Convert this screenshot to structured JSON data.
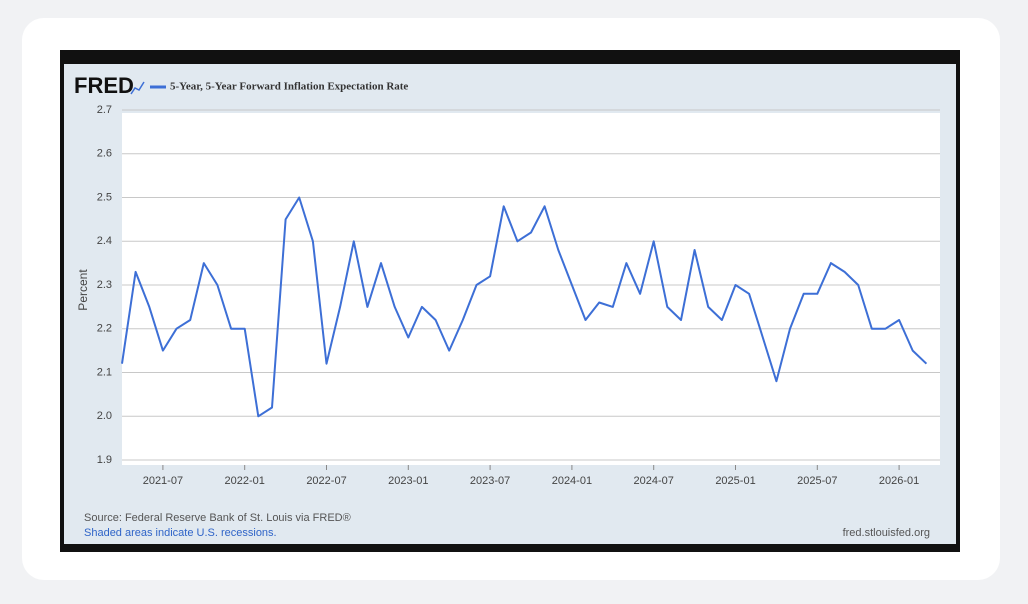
{
  "chart_data": {
    "type": "line",
    "logo": "FRED",
    "y_label": "Percent",
    "source": "Source: Federal Reserve Bank of St. Louis via FRED®",
    "note": "Shaded areas indicate U.S. recessions.",
    "site": "fred.stlouisfed.org",
    "x": [
      "2021-04",
      "2021-05",
      "2021-06",
      "2021-07",
      "2021-08",
      "2021-09",
      "2021-10",
      "2021-11",
      "2021-12",
      "2022-01",
      "2022-02",
      "2022-03",
      "2022-04",
      "2022-05",
      "2022-06",
      "2022-07",
      "2022-08",
      "2022-09",
      "2022-10",
      "2022-11",
      "2022-12",
      "2023-01",
      "2023-02",
      "2023-03",
      "2023-04",
      "2023-05",
      "2023-06",
      "2023-07",
      "2023-08",
      "2023-09",
      "2023-10",
      "2023-11",
      "2023-12",
      "2024-01",
      "2024-02",
      "2024-03",
      "2024-04",
      "2024-05",
      "2024-06",
      "2024-07",
      "2024-08",
      "2024-09",
      "2024-10",
      "2024-11",
      "2024-12",
      "2025-01",
      "2025-02",
      "2025-03",
      "2025-04",
      "2025-05",
      "2025-06",
      "2025-07",
      "2025-08",
      "2025-09",
      "2025-10",
      "2025-11",
      "2025-12",
      "2026-01",
      "2026-02",
      "2026-03"
    ],
    "series": [
      {
        "name": "5-Year, 5-Year Forward Inflation Expectation Rate",
        "color": "#3d6fd6",
        "values": [
          2.12,
          2.33,
          2.25,
          2.15,
          2.2,
          2.22,
          2.35,
          2.3,
          2.2,
          2.2,
          2.0,
          2.02,
          2.45,
          2.5,
          2.4,
          2.12,
          2.25,
          2.4,
          2.25,
          2.35,
          2.25,
          2.18,
          2.25,
          2.22,
          2.15,
          2.22,
          2.3,
          2.32,
          2.48,
          2.4,
          2.42,
          2.48,
          2.38,
          2.3,
          2.22,
          2.26,
          2.25,
          2.35,
          2.28,
          2.4,
          2.25,
          2.22,
          2.38,
          2.25,
          2.22,
          2.3,
          2.28,
          2.18,
          2.08,
          2.2,
          2.28,
          2.28,
          2.35,
          2.33,
          2.3,
          2.2,
          2.2,
          2.22,
          2.15,
          2.12
        ]
      }
    ],
    "xlim": [
      "2021-04",
      "2026-04"
    ],
    "xticks": [
      "2021-07",
      "2022-01",
      "2022-07",
      "2023-01",
      "2023-07",
      "2024-01",
      "2024-07",
      "2025-01",
      "2025-07",
      "2026-01"
    ],
    "ylim": [
      1.9,
      2.7
    ],
    "yticks": [
      1.9,
      {
        "value": 2,
        "label": "2.0"
      },
      2.1,
      2.2,
      2.3,
      2.4,
      2.5,
      2.6,
      2.7
    ],
    "grid": true
  }
}
